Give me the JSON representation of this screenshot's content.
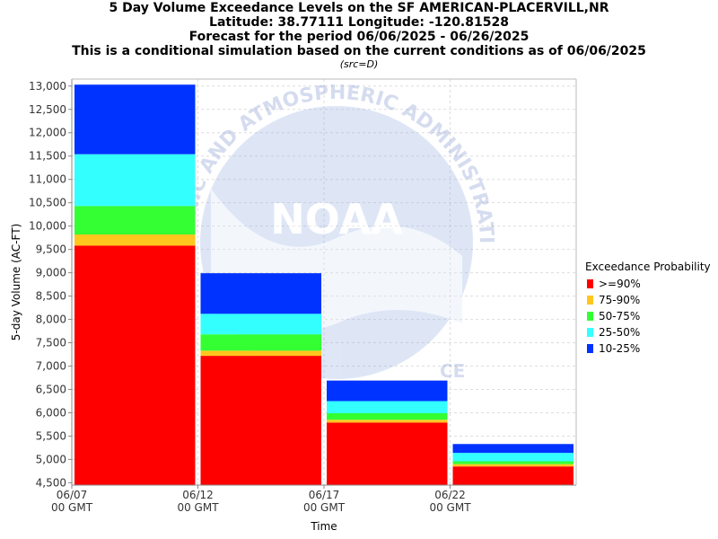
{
  "header": {
    "title_line1": "5 Day Volume Exceedance Levels on the SF AMERICAN-PLACERVILL,NR",
    "title_line2": "Latitude: 38.77111 Longitude: -120.81528",
    "title_line3": "Forecast for the period 06/06/2025 - 06/26/2025",
    "title_line4": "This is a conditional simulation based on the current conditions as of 06/06/2025",
    "src_note": "(src=D)"
  },
  "watermark": {
    "text_upper": "OCEANIC AND ATMOSPHERIC ADMINISTRATION",
    "logo_text": "NOAA",
    "text_lower": "CE"
  },
  "legend": {
    "title": "Exceedance Probability",
    "items": [
      {
        "label": ">=90%",
        "color": "#ff0000"
      },
      {
        "label": "75-90%",
        "color": "#ffc61e"
      },
      {
        "label": "50-75%",
        "color": "#33ff33"
      },
      {
        "label": "25-50%",
        "color": "#33ffff"
      },
      {
        "label": "10-25%",
        "color": "#0033ff"
      }
    ]
  },
  "chart_data": {
    "type": "bar",
    "stacked": true,
    "xlabel": "Time",
    "ylabel": "5-day Volume (AC-FT)",
    "ylim": [
      4450,
      13150
    ],
    "y_ticks": [
      "4,500",
      "5,000",
      "5,500",
      "6,000",
      "6,500",
      "7,000",
      "7,500",
      "8,000",
      "8,500",
      "9,000",
      "9,500",
      "10,000",
      "10,500",
      "11,000",
      "11,500",
      "12,000",
      "12,500",
      "13,000"
    ],
    "x_ticks": [
      {
        "line1": "06/07",
        "line2": "00 GMT"
      },
      {
        "line1": "06/12",
        "line2": "00 GMT"
      },
      {
        "line1": "06/17",
        "line2": "00 GMT"
      },
      {
        "line1": "06/22",
        "line2": "00 GMT"
      }
    ],
    "grid": true,
    "legend_position": "right",
    "bars": [
      {
        "period": "06/07 - 06/12",
        "levels": [
          9580,
          9820,
          10430,
          11540,
          13030
        ]
      },
      {
        "period": "06/12 - 06/17",
        "levels": [
          7220,
          7330,
          7680,
          8120,
          8990
        ]
      },
      {
        "period": "06/17 - 06/22",
        "levels": [
          5790,
          5850,
          5990,
          6250,
          6690
        ]
      },
      {
        "period": "06/22 - 06/27",
        "levels": [
          4850,
          4900,
          4960,
          5140,
          5330
        ]
      }
    ],
    "series": [
      {
        "name": ">=90%",
        "color": "#ff0000"
      },
      {
        "name": "75-90%",
        "color": "#ffc61e"
      },
      {
        "name": "50-75%",
        "color": "#33ff33"
      },
      {
        "name": "25-50%",
        "color": "#33ffff"
      },
      {
        "name": "10-25%",
        "color": "#0033ff"
      }
    ]
  }
}
